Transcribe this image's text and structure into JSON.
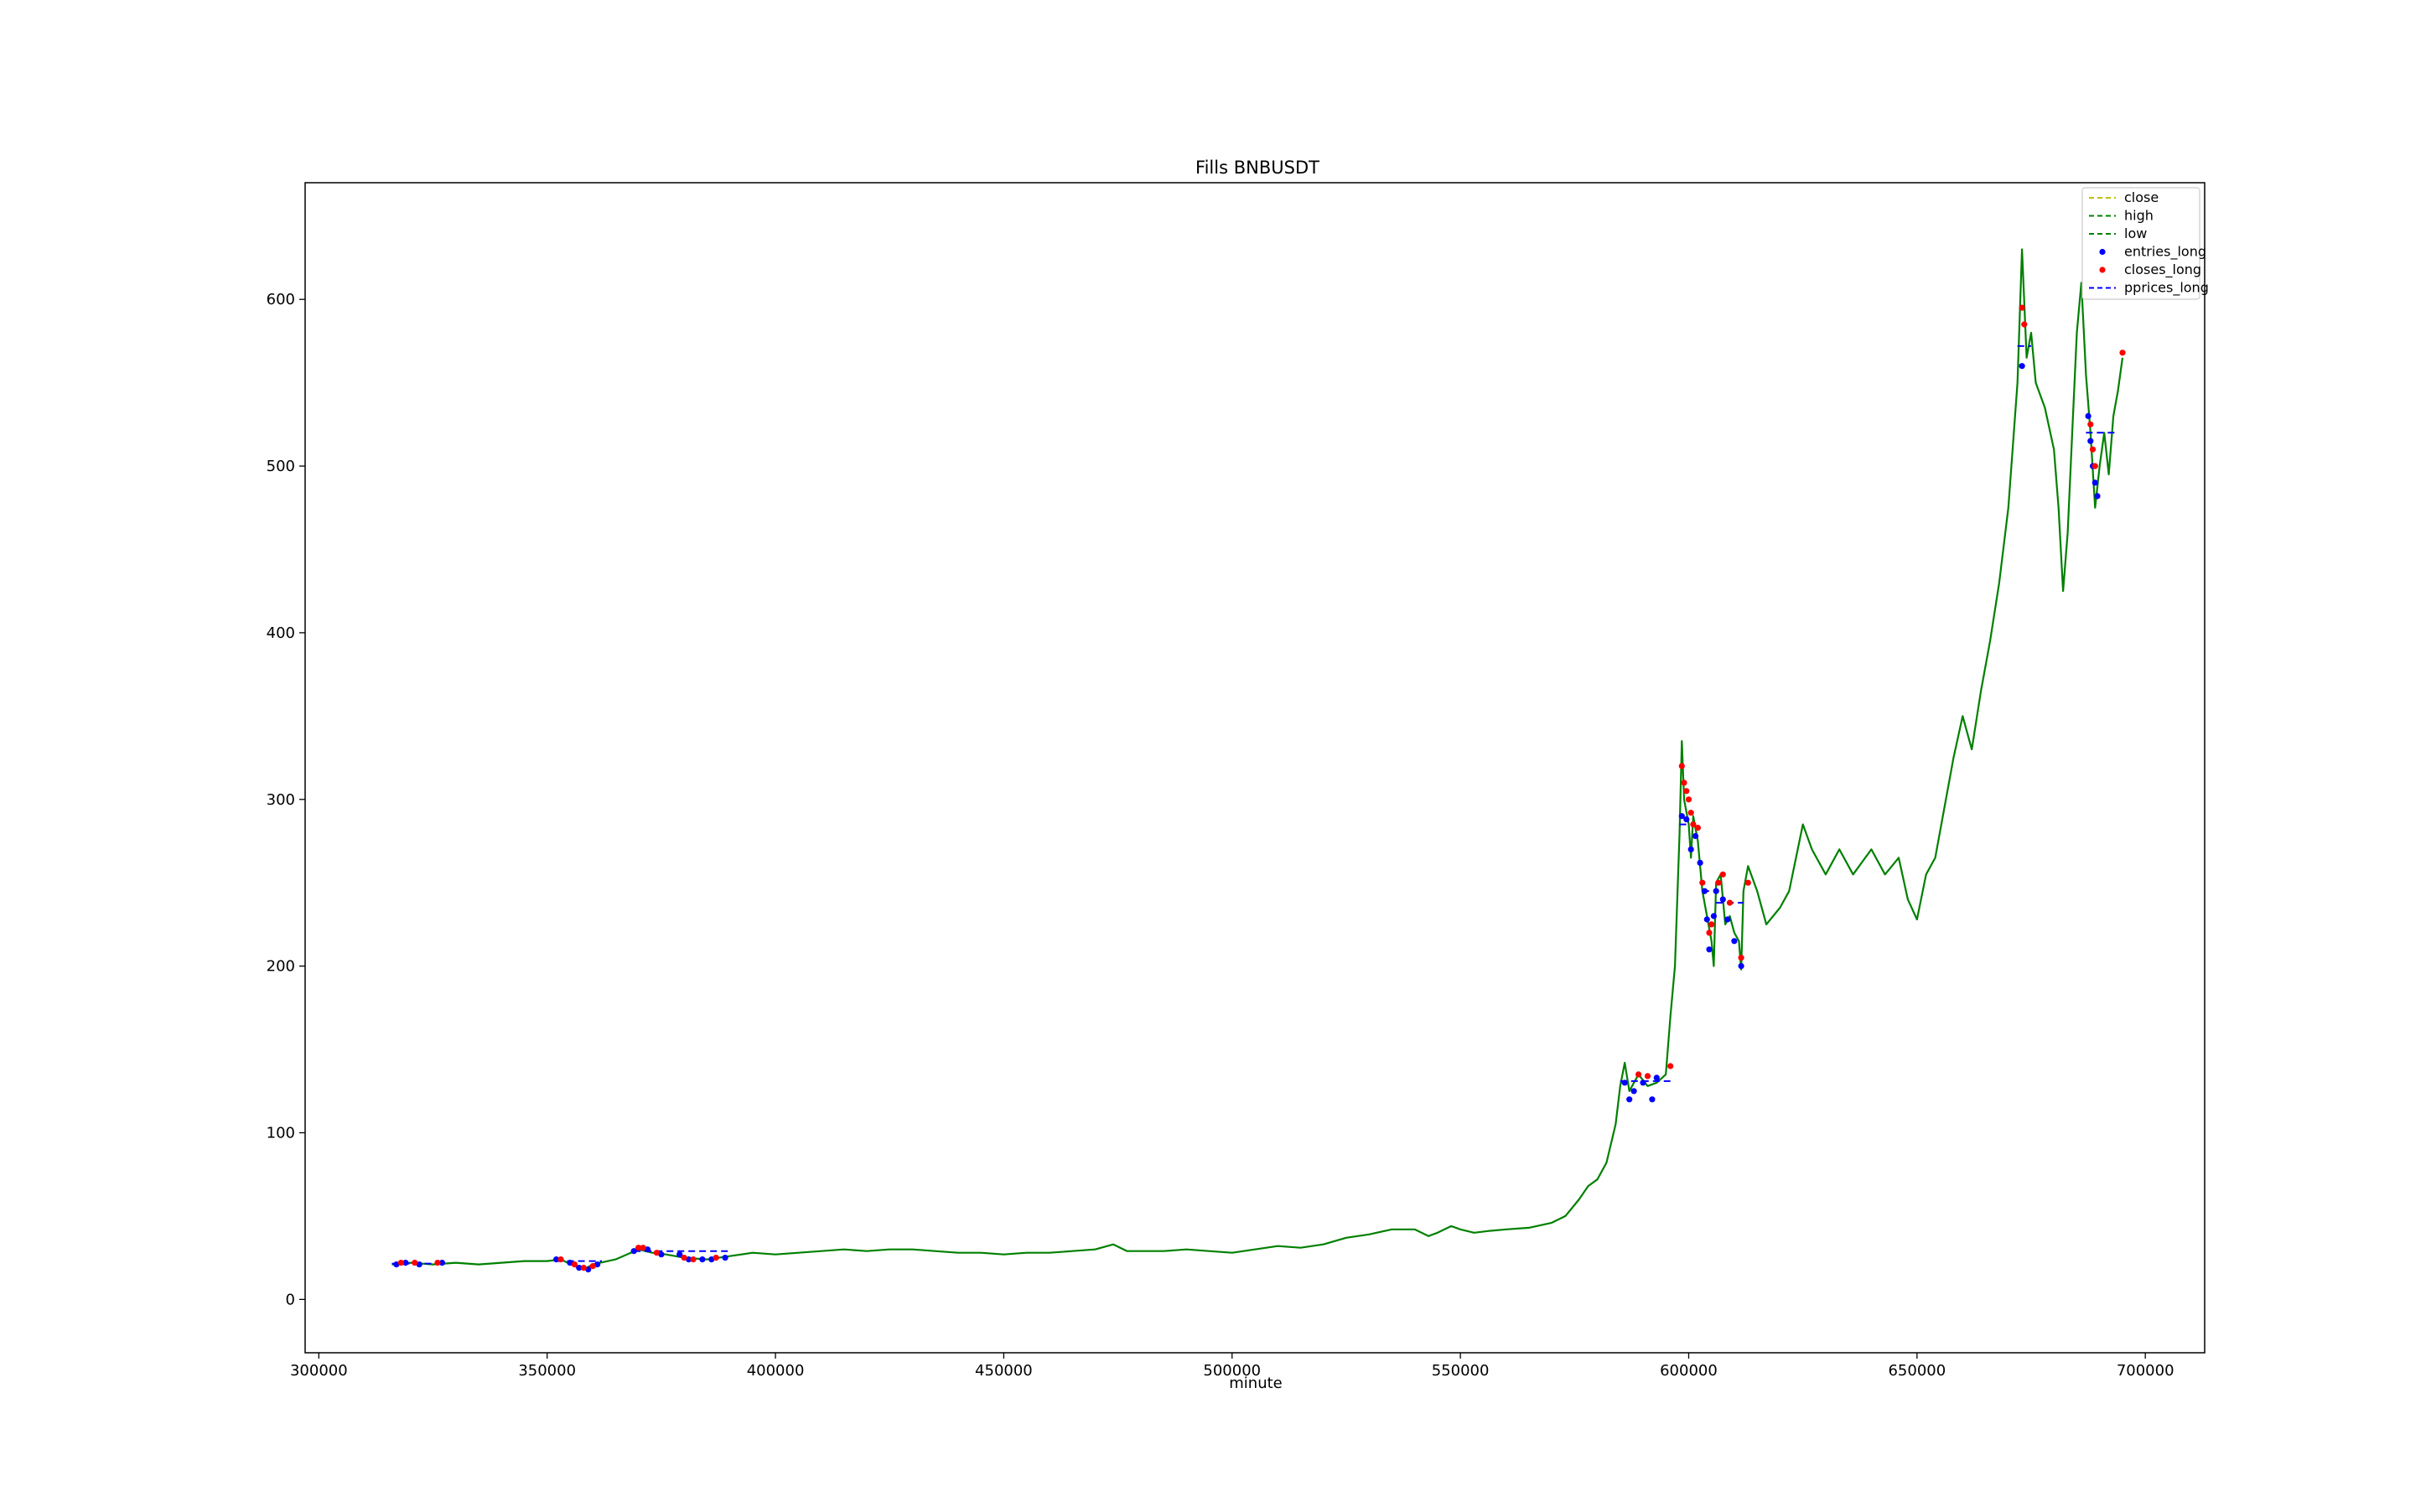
{
  "chart_data": {
    "type": "line",
    "title": "Fills BNBUSDT",
    "xlabel": "minute",
    "ylabel": "",
    "xlim": [
      297000,
      713000
    ],
    "ylim": [
      -32,
      670
    ],
    "x_ticks": [
      300000,
      350000,
      400000,
      450000,
      500000,
      550000,
      600000,
      650000,
      700000
    ],
    "x_tick_labels": [
      "300000",
      "350000",
      "400000",
      "450000",
      "500000",
      "550000",
      "600000",
      "650000",
      "700000"
    ],
    "y_ticks": [
      0,
      100,
      200,
      300,
      400,
      500,
      600
    ],
    "y_tick_labels": [
      "0",
      "100",
      "200",
      "300",
      "400",
      "500",
      "600"
    ],
    "grid": false,
    "legend_position": "upper right",
    "legend": [
      {
        "label": "close",
        "style": "dashed",
        "color": "#bfbf00"
      },
      {
        "label": "high",
        "style": "dashed",
        "color": "#008000"
      },
      {
        "label": "low",
        "style": "dashed",
        "color": "#008000"
      },
      {
        "label": "entries_long",
        "style": "marker",
        "color": "#0000ff"
      },
      {
        "label": "closes_long",
        "style": "marker",
        "color": "#ff0000"
      },
      {
        "label": "pprices_long",
        "style": "dashed",
        "color": "#0000ff"
      }
    ],
    "series": [
      {
        "name": "close",
        "color": "#008000",
        "points": [
          [
            316000,
            21
          ],
          [
            320000,
            22
          ],
          [
            325000,
            21
          ],
          [
            330000,
            22
          ],
          [
            335000,
            21
          ],
          [
            340000,
            22
          ],
          [
            345000,
            23
          ],
          [
            350000,
            23
          ],
          [
            353000,
            24
          ],
          [
            356000,
            20
          ],
          [
            358000,
            18
          ],
          [
            360000,
            21
          ],
          [
            365000,
            24
          ],
          [
            370000,
            30
          ],
          [
            373000,
            28
          ],
          [
            376000,
            27
          ],
          [
            380000,
            25
          ],
          [
            385000,
            24
          ],
          [
            390000,
            26
          ],
          [
            395000,
            28
          ],
          [
            400000,
            27
          ],
          [
            405000,
            28
          ],
          [
            410000,
            29
          ],
          [
            415000,
            30
          ],
          [
            420000,
            29
          ],
          [
            425000,
            30
          ],
          [
            430000,
            30
          ],
          [
            435000,
            29
          ],
          [
            440000,
            28
          ],
          [
            445000,
            28
          ],
          [
            450000,
            27
          ],
          [
            455000,
            28
          ],
          [
            460000,
            28
          ],
          [
            465000,
            29
          ],
          [
            470000,
            30
          ],
          [
            474000,
            33
          ],
          [
            477000,
            29
          ],
          [
            480000,
            29
          ],
          [
            485000,
            29
          ],
          [
            490000,
            30
          ],
          [
            495000,
            29
          ],
          [
            500000,
            28
          ],
          [
            505000,
            30
          ],
          [
            510000,
            32
          ],
          [
            515000,
            31
          ],
          [
            520000,
            33
          ],
          [
            525000,
            37
          ],
          [
            530000,
            39
          ],
          [
            535000,
            42
          ],
          [
            540000,
            42
          ],
          [
            543000,
            38
          ],
          [
            545000,
            40
          ],
          [
            548000,
            44
          ],
          [
            550000,
            42
          ],
          [
            553000,
            40
          ],
          [
            556000,
            41
          ],
          [
            560000,
            42
          ],
          [
            565000,
            43
          ],
          [
            570000,
            46
          ],
          [
            573000,
            50
          ],
          [
            576000,
            60
          ],
          [
            578000,
            68
          ],
          [
            580000,
            72
          ],
          [
            582000,
            82
          ],
          [
            584000,
            105
          ],
          [
            585000,
            128
          ],
          [
            586000,
            142
          ],
          [
            587000,
            125
          ],
          [
            589000,
            135
          ],
          [
            591000,
            128
          ],
          [
            593000,
            130
          ],
          [
            595000,
            135
          ],
          [
            596000,
            170
          ],
          [
            597000,
            200
          ],
          [
            598000,
            280
          ],
          [
            598500,
            335
          ],
          [
            599000,
            300
          ],
          [
            600000,
            285
          ],
          [
            600500,
            265
          ],
          [
            601000,
            290
          ],
          [
            602000,
            275
          ],
          [
            603000,
            245
          ],
          [
            604000,
            230
          ],
          [
            605000,
            215
          ],
          [
            605500,
            200
          ],
          [
            606000,
            250
          ],
          [
            607000,
            255
          ],
          [
            608000,
            225
          ],
          [
            609000,
            230
          ],
          [
            610000,
            220
          ],
          [
            611000,
            215
          ],
          [
            611500,
            198
          ],
          [
            612000,
            245
          ],
          [
            613000,
            260
          ],
          [
            615000,
            245
          ],
          [
            617000,
            225
          ],
          [
            620000,
            235
          ],
          [
            622000,
            245
          ],
          [
            625000,
            285
          ],
          [
            627000,
            270
          ],
          [
            630000,
            255
          ],
          [
            633000,
            270
          ],
          [
            636000,
            255
          ],
          [
            640000,
            270
          ],
          [
            643000,
            255
          ],
          [
            646000,
            265
          ],
          [
            648000,
            240
          ],
          [
            650000,
            228
          ],
          [
            652000,
            255
          ],
          [
            654000,
            265
          ],
          [
            656000,
            295
          ],
          [
            658000,
            325
          ],
          [
            660000,
            350
          ],
          [
            662000,
            330
          ],
          [
            664000,
            365
          ],
          [
            666000,
            395
          ],
          [
            668000,
            430
          ],
          [
            670000,
            475
          ],
          [
            672000,
            550
          ],
          [
            673000,
            630
          ],
          [
            674000,
            565
          ],
          [
            675000,
            580
          ],
          [
            676000,
            550
          ],
          [
            678000,
            535
          ],
          [
            680000,
            510
          ],
          [
            681000,
            475
          ],
          [
            682000,
            425
          ],
          [
            683000,
            460
          ],
          [
            684000,
            520
          ],
          [
            685000,
            580
          ],
          [
            686000,
            610
          ],
          [
            687000,
            555
          ],
          [
            688000,
            520
          ],
          [
            689000,
            475
          ],
          [
            690000,
            500
          ],
          [
            691000,
            520
          ],
          [
            692000,
            495
          ],
          [
            693000,
            530
          ],
          [
            694000,
            545
          ],
          [
            695000,
            565
          ]
        ]
      },
      {
        "name": "entries_long",
        "color": "#0000ff",
        "points": [
          [
            317000,
            21
          ],
          [
            319000,
            22
          ],
          [
            322000,
            21
          ],
          [
            327000,
            22
          ],
          [
            352000,
            24
          ],
          [
            355000,
            22
          ],
          [
            357000,
            19
          ],
          [
            359000,
            18
          ],
          [
            361000,
            21
          ],
          [
            369000,
            29
          ],
          [
            372000,
            30
          ],
          [
            375000,
            27
          ],
          [
            379000,
            27
          ],
          [
            381000,
            24
          ],
          [
            384000,
            24
          ],
          [
            386000,
            24
          ],
          [
            389000,
            25
          ],
          [
            586000,
            130
          ],
          [
            587000,
            120
          ],
          [
            588000,
            125
          ],
          [
            590000,
            130
          ],
          [
            592000,
            120
          ],
          [
            593000,
            133
          ],
          [
            598500,
            290
          ],
          [
            599500,
            288
          ],
          [
            600500,
            270
          ],
          [
            601500,
            278
          ],
          [
            602500,
            262
          ],
          [
            603500,
            245
          ],
          [
            604000,
            228
          ],
          [
            604500,
            210
          ],
          [
            605500,
            230
          ],
          [
            606000,
            245
          ],
          [
            607500,
            240
          ],
          [
            608500,
            228
          ],
          [
            610000,
            215
          ],
          [
            611500,
            200
          ],
          [
            673000,
            560
          ],
          [
            687500,
            530
          ],
          [
            688000,
            515
          ],
          [
            688500,
            500
          ],
          [
            689000,
            490
          ],
          [
            689500,
            482
          ]
        ]
      },
      {
        "name": "closes_long",
        "color": "#ff0000",
        "points": [
          [
            318000,
            22
          ],
          [
            321000,
            22
          ],
          [
            326000,
            22
          ],
          [
            353000,
            24
          ],
          [
            356000,
            21
          ],
          [
            358000,
            19
          ],
          [
            360000,
            20
          ],
          [
            370000,
            31
          ],
          [
            371000,
            31
          ],
          [
            374000,
            28
          ],
          [
            380000,
            25
          ],
          [
            382000,
            24
          ],
          [
            387000,
            25
          ],
          [
            589000,
            135
          ],
          [
            591000,
            134
          ],
          [
            596000,
            140
          ],
          [
            598500,
            320
          ],
          [
            599000,
            310
          ],
          [
            599500,
            305
          ],
          [
            600000,
            300
          ],
          [
            600500,
            292
          ],
          [
            601000,
            285
          ],
          [
            602000,
            283
          ],
          [
            603000,
            250
          ],
          [
            604500,
            220
          ],
          [
            605000,
            225
          ],
          [
            606500,
            250
          ],
          [
            607500,
            255
          ],
          [
            609000,
            238
          ],
          [
            611500,
            205
          ],
          [
            613000,
            250
          ],
          [
            673000,
            595
          ],
          [
            673500,
            585
          ],
          [
            688000,
            525
          ],
          [
            688500,
            510
          ],
          [
            689000,
            500
          ],
          [
            695000,
            568
          ]
        ]
      },
      {
        "name": "pprices_long",
        "color": "#0000ff",
        "segments": [
          [
            [
              316000,
              21.5
            ],
            [
              327000,
              21.5
            ]
          ],
          [
            [
              352000,
              23
            ],
            [
              362000,
              23
            ]
          ],
          [
            [
              369000,
              29
            ],
            [
              390000,
              29
            ]
          ],
          [
            [
              585000,
              131
            ],
            [
              596000,
              131
            ]
          ],
          [
            [
              598000,
              285
            ],
            [
              601000,
              285
            ]
          ],
          [
            [
              603000,
              245
            ],
            [
              605000,
              245
            ]
          ],
          [
            [
              606000,
              238
            ],
            [
              612000,
              238
            ]
          ],
          [
            [
              672000,
              572
            ],
            [
              675000,
              572
            ]
          ],
          [
            [
              687000,
              520
            ],
            [
              694000,
              520
            ]
          ]
        ]
      }
    ]
  }
}
